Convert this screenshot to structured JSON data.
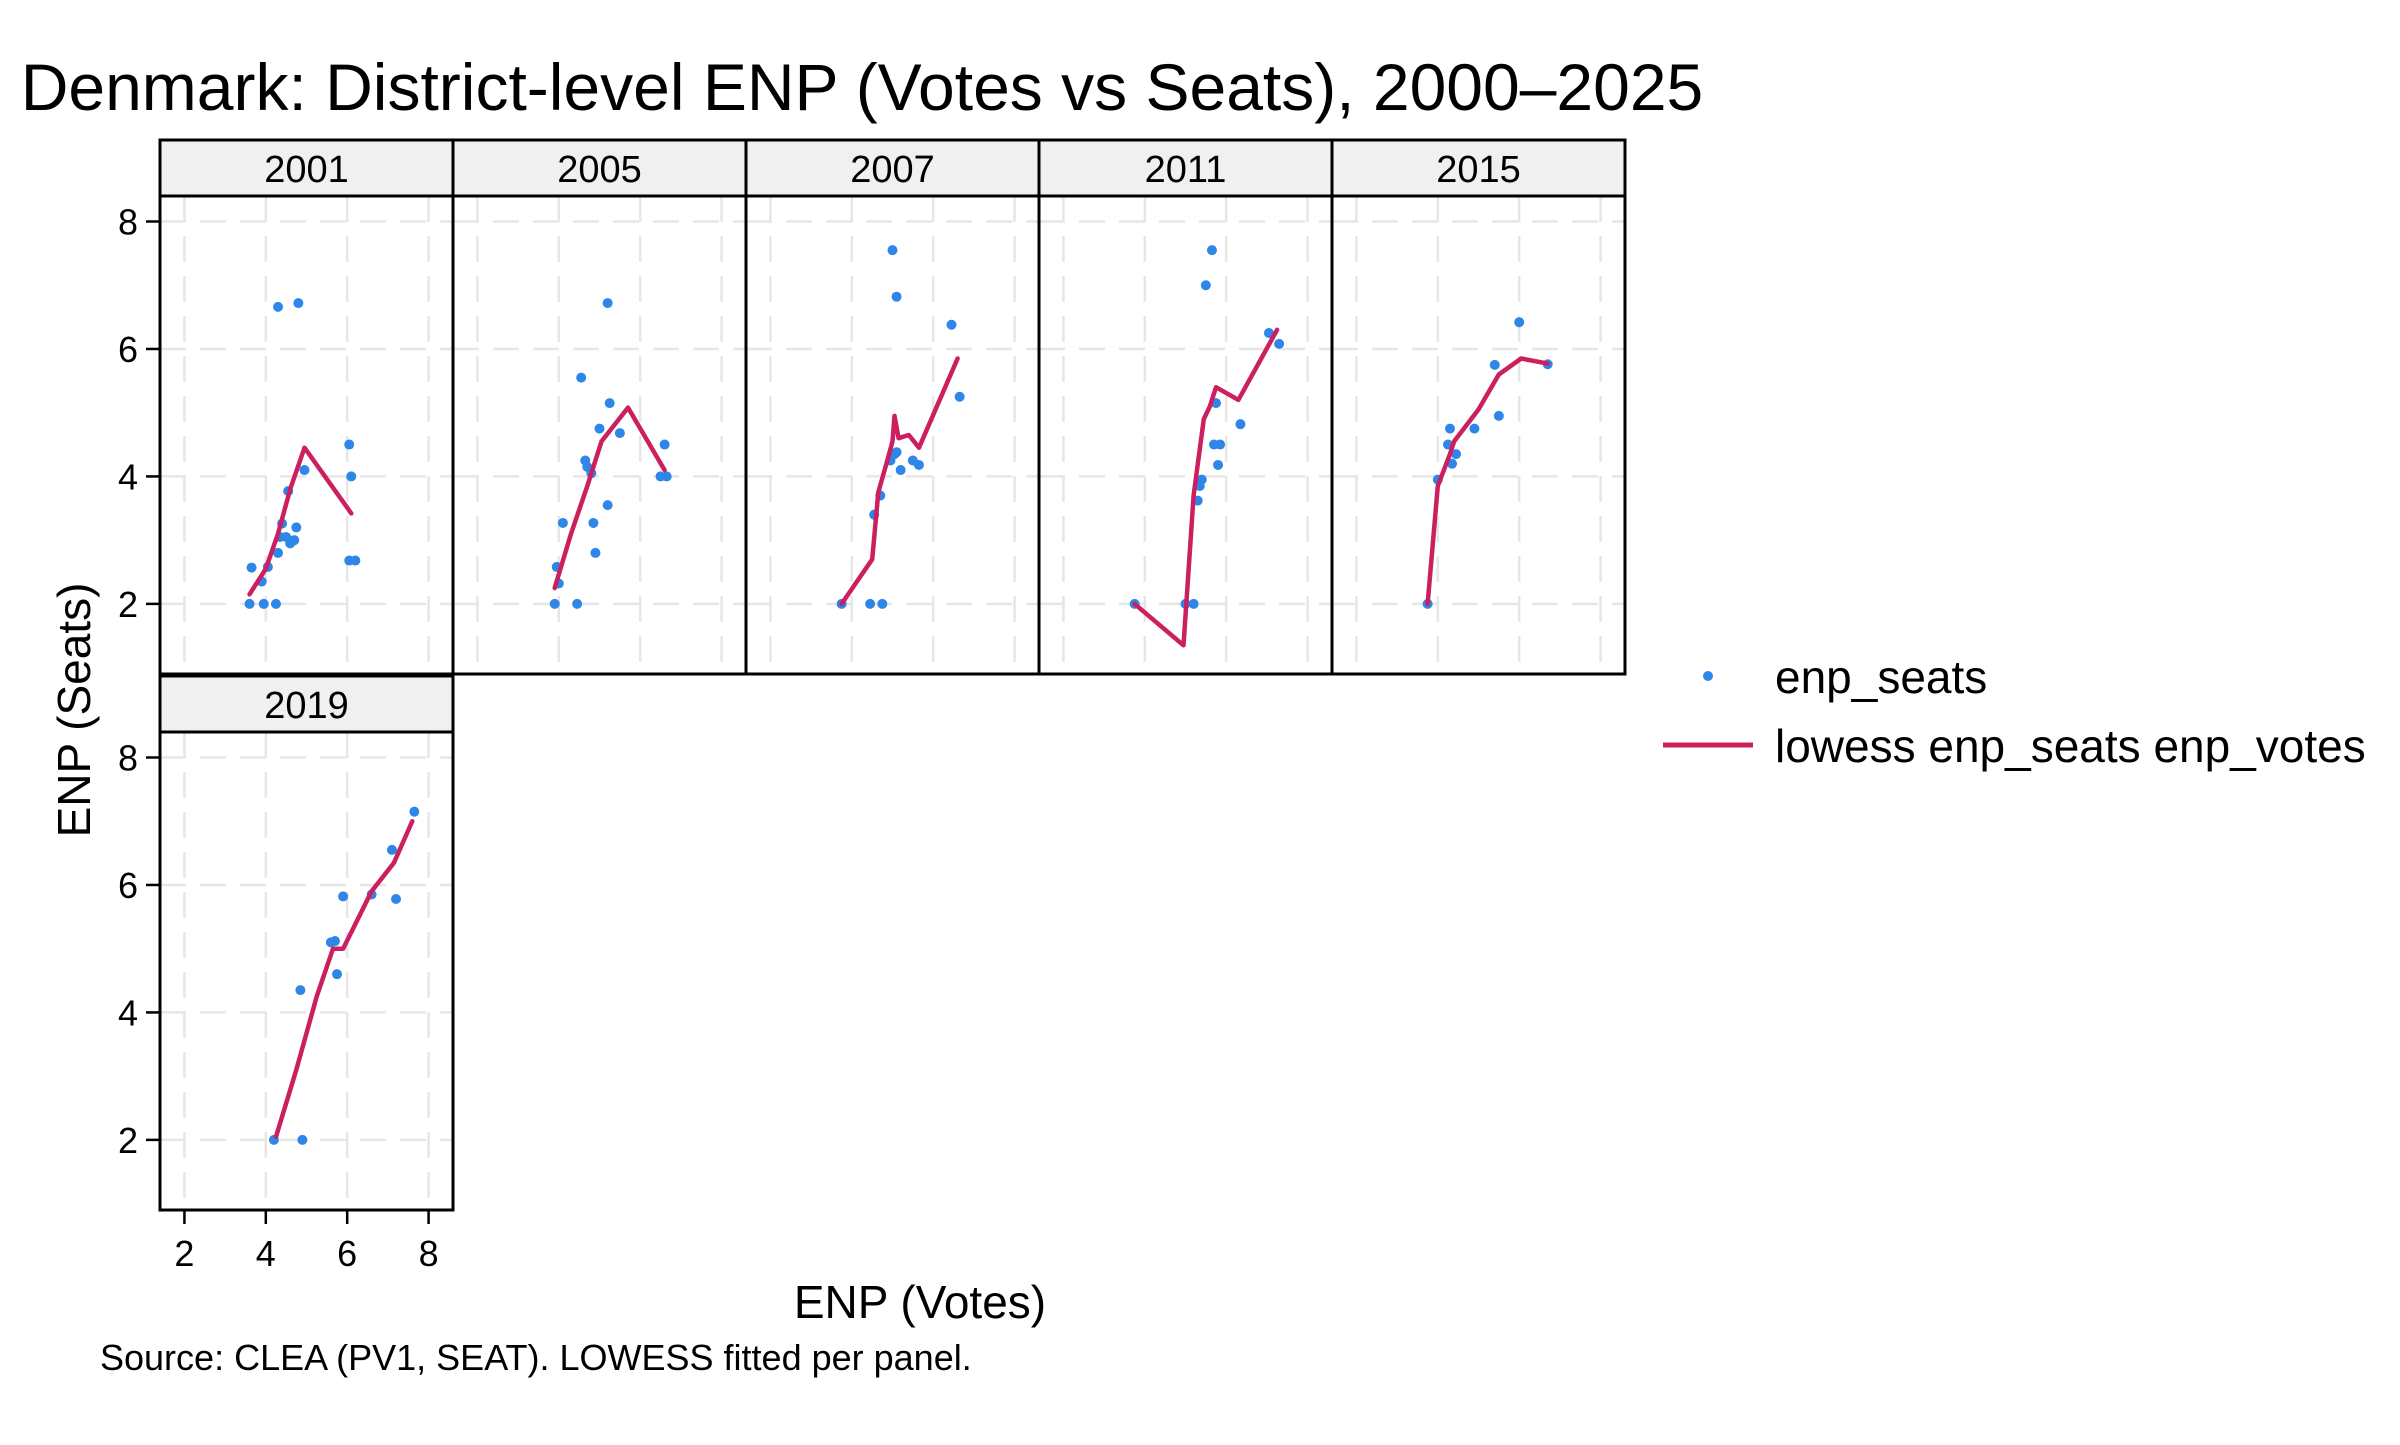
{
  "chart_data": {
    "type": "scatter",
    "title": "Denmark: District-level ENP (Votes vs Seats), 2000–2025",
    "xlabel": "ENP (Votes)",
    "ylabel": "ENP (Seats)",
    "note": "Source: CLEA (PV1, SEAT). LOWESS fitted per panel.",
    "xlim": [
      1.4,
      8.6
    ],
    "ylim": [
      0.9,
      8.4
    ],
    "x_ticks": [
      "2",
      "4",
      "6",
      "8"
    ],
    "y_ticks": [
      "2",
      "4",
      "6",
      "8"
    ],
    "grid": true,
    "legend_position": "right",
    "legend": [
      {
        "label": "enp_seats",
        "kind": "point",
        "color": "#2e86e8"
      },
      {
        "label": "lowess enp_seats enp_votes",
        "kind": "line",
        "color": "#cc1f5f"
      }
    ],
    "panels": [
      {
        "year": "2001",
        "points": [
          [
            3.65,
            2.57
          ],
          [
            3.6,
            2.0
          ],
          [
            3.95,
            2.0
          ],
          [
            3.9,
            2.35
          ],
          [
            4.05,
            2.58
          ],
          [
            4.25,
            2.0
          ],
          [
            4.3,
            2.8
          ],
          [
            4.35,
            3.05
          ],
          [
            4.4,
            3.26
          ],
          [
            4.55,
            3.77
          ],
          [
            4.6,
            2.95
          ],
          [
            4.7,
            3.0
          ],
          [
            4.75,
            3.2
          ],
          [
            4.5,
            3.05
          ],
          [
            4.95,
            4.1
          ],
          [
            4.3,
            6.66
          ],
          [
            4.8,
            6.72
          ],
          [
            6.05,
            4.5
          ],
          [
            6.1,
            4.0
          ],
          [
            6.05,
            2.68
          ],
          [
            6.2,
            2.68
          ]
        ],
        "lowess": [
          [
            3.6,
            2.15
          ],
          [
            4.0,
            2.55
          ],
          [
            4.3,
            3.1
          ],
          [
            4.6,
            3.8
          ],
          [
            4.95,
            4.45
          ],
          [
            6.1,
            3.42
          ]
        ]
      },
      {
        "year": "2005",
        "points": [
          [
            3.9,
            2.0
          ],
          [
            3.95,
            2.58
          ],
          [
            4.0,
            2.32
          ],
          [
            4.1,
            3.27
          ],
          [
            4.45,
            2.0
          ],
          [
            4.55,
            5.55
          ],
          [
            4.65,
            4.25
          ],
          [
            4.7,
            4.15
          ],
          [
            4.8,
            4.05
          ],
          [
            4.85,
            3.27
          ],
          [
            4.9,
            2.8
          ],
          [
            5.0,
            4.75
          ],
          [
            5.2,
            3.55
          ],
          [
            5.2,
            6.72
          ],
          [
            5.25,
            5.15
          ],
          [
            5.5,
            4.68
          ],
          [
            6.5,
            4.0
          ],
          [
            6.6,
            4.5
          ],
          [
            6.65,
            4.0
          ]
        ],
        "lowess": [
          [
            3.9,
            2.25
          ],
          [
            4.3,
            3.1
          ],
          [
            4.7,
            3.85
          ],
          [
            5.05,
            4.55
          ],
          [
            5.7,
            5.08
          ],
          [
            6.6,
            4.1
          ]
        ]
      },
      {
        "year": "2007",
        "points": [
          [
            3.75,
            2.0
          ],
          [
            4.45,
            2.0
          ],
          [
            4.55,
            3.4
          ],
          [
            4.7,
            3.7
          ],
          [
            4.75,
            2.0
          ],
          [
            4.95,
            4.25
          ],
          [
            5.05,
            4.35
          ],
          [
            5.1,
            4.38
          ],
          [
            5.0,
            7.55
          ],
          [
            5.1,
            6.82
          ],
          [
            5.2,
            4.1
          ],
          [
            5.5,
            4.25
          ],
          [
            5.65,
            4.18
          ],
          [
            6.45,
            6.38
          ],
          [
            6.65,
            5.25
          ]
        ],
        "lowess": [
          [
            3.75,
            2.0
          ],
          [
            4.5,
            2.7
          ],
          [
            4.65,
            3.75
          ],
          [
            4.85,
            4.2
          ],
          [
            5.0,
            4.55
          ],
          [
            5.05,
            4.95
          ],
          [
            5.15,
            4.6
          ],
          [
            5.4,
            4.65
          ],
          [
            5.65,
            4.45
          ],
          [
            6.6,
            5.85
          ]
        ]
      },
      {
        "year": "2011",
        "points": [
          [
            3.75,
            2.0
          ],
          [
            5.0,
            2.0
          ],
          [
            5.2,
            2.0
          ],
          [
            5.3,
            3.62
          ],
          [
            5.35,
            3.85
          ],
          [
            5.4,
            3.95
          ],
          [
            5.5,
            7.0
          ],
          [
            5.65,
            7.55
          ],
          [
            5.7,
            4.5
          ],
          [
            5.75,
            5.15
          ],
          [
            5.8,
            4.18
          ],
          [
            5.85,
            4.5
          ],
          [
            6.35,
            4.82
          ],
          [
            7.05,
            6.25
          ],
          [
            7.3,
            6.08
          ]
        ],
        "lowess": [
          [
            3.75,
            2.0
          ],
          [
            4.95,
            1.35
          ],
          [
            5.2,
            3.7
          ],
          [
            5.45,
            4.9
          ],
          [
            5.6,
            5.1
          ],
          [
            5.75,
            5.4
          ],
          [
            6.3,
            5.2
          ],
          [
            7.25,
            6.3
          ]
        ]
      },
      {
        "year": "2015",
        "points": [
          [
            3.75,
            2.0
          ],
          [
            4.0,
            3.95
          ],
          [
            4.25,
            4.5
          ],
          [
            4.3,
            4.75
          ],
          [
            4.45,
            4.35
          ],
          [
            4.35,
            4.2
          ],
          [
            4.9,
            4.75
          ],
          [
            5.4,
            5.75
          ],
          [
            5.5,
            4.95
          ],
          [
            6.0,
            6.42
          ],
          [
            6.7,
            5.76
          ]
        ],
        "lowess": [
          [
            3.75,
            2.0
          ],
          [
            4.0,
            3.85
          ],
          [
            4.3,
            4.35
          ],
          [
            4.4,
            4.55
          ],
          [
            5.0,
            5.05
          ],
          [
            5.5,
            5.6
          ],
          [
            6.05,
            5.85
          ],
          [
            6.7,
            5.77
          ]
        ]
      },
      {
        "year": "2019",
        "points": [
          [
            4.2,
            2.0
          ],
          [
            4.85,
            4.35
          ],
          [
            4.9,
            2.0
          ],
          [
            5.6,
            5.1
          ],
          [
            5.7,
            5.12
          ],
          [
            5.75,
            4.6
          ],
          [
            5.9,
            5.82
          ],
          [
            6.6,
            5.85
          ],
          [
            7.1,
            6.55
          ],
          [
            7.2,
            5.78
          ],
          [
            7.65,
            7.15
          ]
        ],
        "lowess": [
          [
            4.25,
            2.05
          ],
          [
            4.75,
            3.1
          ],
          [
            5.25,
            4.25
          ],
          [
            5.65,
            5.0
          ],
          [
            5.9,
            5.0
          ],
          [
            6.6,
            5.9
          ],
          [
            7.15,
            6.35
          ],
          [
            7.6,
            7.0
          ]
        ]
      }
    ]
  }
}
